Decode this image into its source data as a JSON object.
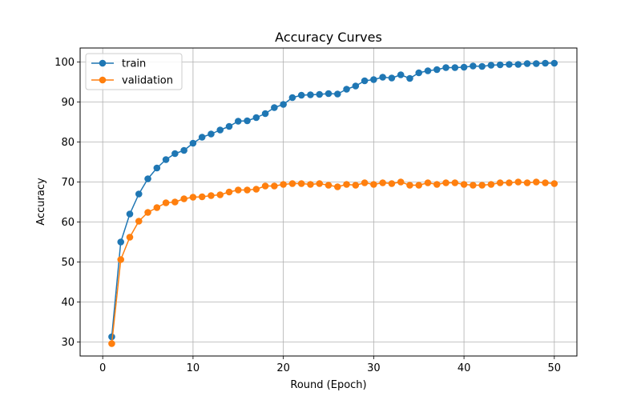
{
  "chart_data": {
    "type": "line",
    "title": "Accuracy Curves",
    "xlabel": "Round (Epoch)",
    "ylabel": "Accuracy",
    "xlim": [
      -2.5,
      52.5
    ],
    "ylim": [
      26.5,
      103.5
    ],
    "xticks": [
      0,
      10,
      20,
      30,
      40,
      50
    ],
    "yticks": [
      30,
      40,
      50,
      60,
      70,
      80,
      90,
      100
    ],
    "grid": true,
    "legend_position": "top-left",
    "x": [
      1,
      2,
      3,
      4,
      5,
      6,
      7,
      8,
      9,
      10,
      11,
      12,
      13,
      14,
      15,
      16,
      17,
      18,
      19,
      20,
      21,
      22,
      23,
      24,
      25,
      26,
      27,
      28,
      29,
      30,
      31,
      32,
      33,
      34,
      35,
      36,
      37,
      38,
      39,
      40,
      41,
      42,
      43,
      44,
      45,
      46,
      47,
      48,
      49,
      50
    ],
    "series": [
      {
        "name": "train",
        "color": "#1f77b4",
        "values": [
          31.3,
          55.0,
          62.0,
          67.0,
          70.8,
          73.5,
          75.6,
          77.1,
          77.9,
          79.7,
          81.2,
          82.0,
          83.0,
          83.9,
          85.2,
          85.3,
          86.1,
          87.1,
          88.6,
          89.4,
          91.1,
          91.7,
          91.8,
          91.9,
          92.1,
          92.0,
          93.2,
          94.0,
          95.3,
          95.6,
          96.2,
          96.0,
          96.8,
          95.9,
          97.3,
          97.8,
          98.1,
          98.6,
          98.6,
          98.7,
          99.0,
          98.9,
          99.2,
          99.3,
          99.4,
          99.4,
          99.6,
          99.6,
          99.7,
          99.7
        ]
      },
      {
        "name": "validation",
        "color": "#ff7f0e",
        "values": [
          29.6,
          50.6,
          56.2,
          60.2,
          62.4,
          63.6,
          64.8,
          65.0,
          65.8,
          66.2,
          66.3,
          66.6,
          66.8,
          67.5,
          68.0,
          68.0,
          68.2,
          69.0,
          69.0,
          69.4,
          69.6,
          69.6,
          69.4,
          69.6,
          69.2,
          68.8,
          69.4,
          69.2,
          69.8,
          69.4,
          69.8,
          69.6,
          70.0,
          69.2,
          69.2,
          69.8,
          69.4,
          69.8,
          69.8,
          69.4,
          69.2,
          69.2,
          69.4,
          69.8,
          69.8,
          70.0,
          69.8,
          70.0,
          69.8,
          69.6
        ]
      }
    ]
  }
}
